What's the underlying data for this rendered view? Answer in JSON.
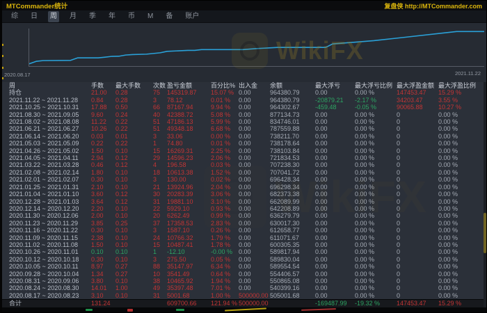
{
  "window": {
    "title": "MTCommander统计",
    "brand": "复盘侠 http://MTCommander.com"
  },
  "colors": {
    "red": "#c43535",
    "green": "#2da563",
    "text": "#b9bfc9",
    "dim": "#a6acb6",
    "accent": "#dcb60c",
    "chart_line": "#2aa1d8",
    "hdr": "#ccd1d9"
  },
  "tabs": {
    "items": [
      "综",
      "日",
      "周",
      "月",
      "季",
      "年",
      "币",
      "M",
      "备",
      "账户"
    ],
    "active_index": 2
  },
  "chart": {
    "start_label": "2020.08.17",
    "end_label": "2021.11.22",
    "watermark": "WikiFX"
  },
  "chart_data": {
    "type": "line",
    "title": "周余额曲线",
    "xlabel": "",
    "ylabel": "余额",
    "legend": [],
    "grid": false,
    "x": [
      "2020.08.17",
      "2020.08.24",
      "2020.08.31",
      "2020.09.28",
      "2020.10.05",
      "2020.10.12",
      "2020.10.26",
      "2020.11.02",
      "2020.11.09",
      "2020.11.16",
      "2020.11.23",
      "2020.11.30",
      "2020.12.14",
      "2020.12.28",
      "2021.01.04",
      "2021.01.25",
      "2021.02.01",
      "2021.02.08",
      "2021.03.22",
      "2021.04.05",
      "2021.04.26",
      "2021.05.03",
      "2021.06.14",
      "2021.06.21",
      "2021.08.02",
      "2021.08.30",
      "2021.10.25",
      "2021.11.22"
    ],
    "series": [
      {
        "name": "余额",
        "values": [
          505001.68,
          540399.16,
          550865.08,
          554406.57,
          589554.54,
          589830.04,
          589817.94,
          600305.35,
          611071.67,
          612658.77,
          630017.3,
          636279.79,
          642208.89,
          662089.99,
          682373.38,
          696298.34,
          696428.34,
          707041.72,
          707238.3,
          721834.53,
          738103.84,
          738178.64,
          738211.7,
          787559.88,
          834746.01,
          877134.73,
          964302.67,
          964380.79
        ]
      }
    ],
    "ylim": [
      500000,
      980000
    ]
  },
  "table": {
    "headers": [
      "周",
      "手数",
      "最大手数",
      "次数",
      "盈亏金额",
      "百分比%",
      "出入金",
      "余额",
      "最大浮亏",
      "最大浮亏比例",
      "最大浮盈金额",
      "最大浮盈比例"
    ],
    "rows": [
      {
        "cells": [
          "持仓",
          "21.00",
          "0.28",
          "75",
          "145319.87",
          "15.07 %",
          "0.00",
          "964380.79",
          "0.00",
          "0.00 %",
          "147453.47",
          "15.29 %"
        ],
        "colors": "wrrrrrddddrr"
      },
      {
        "cells": [
          "2021.11.22 ~ 2021.11.28",
          "0.84",
          "0.28",
          "3",
          "78.12",
          "0.01 %",
          "0.00",
          "964380.79",
          "-20879.21",
          "-2.17 %",
          "34203.47",
          "3.55 %"
        ],
        "colors": "wrrrrrddggrr"
      },
      {
        "cells": [
          "2021.10.25 ~ 2021.10.31",
          "17.88",
          "0.50",
          "66",
          "87167.94",
          "9.94 %",
          "0.00",
          "964302.67",
          "-459.48",
          "-0.05 %",
          "90065.88",
          "10.27 %"
        ],
        "colors": "wrrrrrddggrr"
      },
      {
        "cells": [
          "2021.08.30 ~ 2021.09.05",
          "9.60",
          "0.24",
          "40",
          "42388.72",
          "5.08 %",
          "0.00",
          "877134.73",
          "0.00",
          "0.00 %",
          "0",
          "0.00 %"
        ],
        "colors": "wrrrrrdddddd"
      },
      {
        "cells": [
          "2021.08.02 ~ 2021.08.08",
          "11.22",
          "0.22",
          "51",
          "47186.13",
          "5.99 %",
          "0.00",
          "834746.01",
          "0.00",
          "0.00 %",
          "0",
          "0.00 %"
        ],
        "colors": "wrrrrrdddddd"
      },
      {
        "cells": [
          "2021.06.21 ~ 2021.06.27",
          "10.26",
          "0.22",
          "51",
          "49348.18",
          "6.68 %",
          "0.00",
          "787559.88",
          "0.00",
          "0.00 %",
          "0",
          "0.00 %"
        ],
        "colors": "wrrrrrdddddd"
      },
      {
        "cells": [
          "2021.06.14 ~ 2021.06.20",
          "0.03",
          "0.01",
          "3",
          "33.06",
          "0.00 %",
          "0.00",
          "738211.70",
          "0.00",
          "0.00 %",
          "0",
          "0.00 %"
        ],
        "colors": "wrrrrrdddddd"
      },
      {
        "cells": [
          "2021.05.03 ~ 2021.05.09",
          "0.22",
          "0.22",
          "1",
          "74.80",
          "0.01 %",
          "0.00",
          "738178.64",
          "0.00",
          "0.00 %",
          "0",
          "0.00 %"
        ],
        "colors": "wrrrrrdddddd"
      },
      {
        "cells": [
          "2021.04.26 ~ 2021.05.02",
          "1.50",
          "0.10",
          "15",
          "16269.31",
          "2.25 %",
          "0.00",
          "738103.84",
          "0.00",
          "0.00 %",
          "0",
          "0.00 %"
        ],
        "colors": "wrrrrrdddddd"
      },
      {
        "cells": [
          "2021.04.05 ~ 2021.04.11",
          "2.94",
          "0.12",
          "29",
          "14596.23",
          "2.06 %",
          "0.00",
          "721834.53",
          "0.00",
          "0.00 %",
          "0",
          "0.00 %"
        ],
        "colors": "wrrrrrdddddd"
      },
      {
        "cells": [
          "2021.03.22 ~ 2021.03.28",
          "0.46",
          "0.12",
          "4",
          "196.58",
          "0.03 %",
          "0.00",
          "707238.30",
          "0.00",
          "0.00 %",
          "0",
          "0.00 %"
        ],
        "colors": "wrrrrrdddddd"
      },
      {
        "cells": [
          "2021.02.08 ~ 2021.02.14",
          "1.80",
          "0.10",
          "18",
          "10613.38",
          "1.52 %",
          "0.00",
          "707041.72",
          "0.00",
          "0.00 %",
          "0",
          "0.00 %"
        ],
        "colors": "wrrrrrdddddd"
      },
      {
        "cells": [
          "2021.02.01 ~ 2021.02.07",
          "0.30",
          "0.10",
          "3",
          "130.00",
          "0.02 %",
          "0.00",
          "696428.34",
          "0.00",
          "0.00 %",
          "0",
          "0.00 %"
        ],
        "colors": "wrrrrrdddddd"
      },
      {
        "cells": [
          "2021.01.25 ~ 2021.01.31",
          "2.10",
          "0.10",
          "21",
          "13924.96",
          "2.04 %",
          "0.00",
          "696298.34",
          "0.00",
          "0.00 %",
          "0",
          "0.00 %"
        ],
        "colors": "wrrrrrdddddd"
      },
      {
        "cells": [
          "2021.01.04 ~ 2021.01.10",
          "3.60",
          "0.12",
          "30",
          "20283.39",
          "3.06 %",
          "0.00",
          "682373.38",
          "0.00",
          "0.00 %",
          "0",
          "0.00 %"
        ],
        "colors": "wrrrrrdddddd"
      },
      {
        "cells": [
          "2020.12.28 ~ 2021.01.03",
          "3.64",
          "0.12",
          "31",
          "19881.10",
          "3.10 %",
          "0.00",
          "662089.99",
          "0.00",
          "0.00 %",
          "0",
          "0.00 %"
        ],
        "colors": "wrrrrrdddddd"
      },
      {
        "cells": [
          "2020.12.14 ~ 2020.12.20",
          "2.20",
          "0.10",
          "22",
          "5929.10",
          "0.93 %",
          "0.00",
          "642208.89",
          "0.00",
          "0.00 %",
          "0",
          "0.00 %"
        ],
        "colors": "wrrrrrdddddd"
      },
      {
        "cells": [
          "2020.11.30 ~ 2020.12.06",
          "2.00",
          "0.10",
          "20",
          "6262.49",
          "0.99 %",
          "0.00",
          "636279.79",
          "0.00",
          "0.00 %",
          "0",
          "0.00 %"
        ],
        "colors": "wrrrrrdddddd"
      },
      {
        "cells": [
          "2020.11.23 ~ 2020.11.29",
          "3.85",
          "0.25",
          "37",
          "17358.53",
          "2.83 %",
          "0.00",
          "630017.30",
          "0.00",
          "0.00 %",
          "0",
          "0.00 %"
        ],
        "colors": "wrrrrrdddddd"
      },
      {
        "cells": [
          "2020.11.16 ~ 2020.11.22",
          "0.30",
          "0.10",
          "3",
          "1587.10",
          "0.26 %",
          "0.00",
          "612658.77",
          "0.00",
          "0.00 %",
          "0",
          "0.00 %"
        ],
        "colors": "wrrrrrdddddd"
      },
      {
        "cells": [
          "2020.11.09 ~ 2020.11.15",
          "2.38",
          "0.10",
          "24",
          "10766.32",
          "1.79 %",
          "0.00",
          "611071.67",
          "0.00",
          "0.00 %",
          "0",
          "0.00 %"
        ],
        "colors": "wrrrrrdddddd"
      },
      {
        "cells": [
          "2020.11.02 ~ 2020.11.08",
          "1.50",
          "0.10",
          "15",
          "10487.41",
          "1.78 %",
          "0.00",
          "600305.35",
          "0.00",
          "0.00 %",
          "0",
          "0.00 %"
        ],
        "colors": "wrrrrrdddddd"
      },
      {
        "cells": [
          "2020.10.26 ~ 2020.11.01",
          "0.10",
          "0.10",
          "1",
          "-12.10",
          "-0.00 %",
          "0.00",
          "589817.94",
          "0.00",
          "0.00 %",
          "0",
          "0.00 %"
        ],
        "colors": "wgggggdddddd"
      },
      {
        "cells": [
          "2020.10.12 ~ 2020.10.18",
          "0.30",
          "0.10",
          "3",
          "275.50",
          "0.05 %",
          "0.00",
          "589830.04",
          "0.00",
          "0.00 %",
          "0",
          "0.00 %"
        ],
        "colors": "wrrrrrdddddd"
      },
      {
        "cells": [
          "2020.10.05 ~ 2020.10.11",
          "8.97",
          "0.27",
          "88",
          "35147.97",
          "6.34 %",
          "0.00",
          "589554.54",
          "0.00",
          "0.00 %",
          "0",
          "0.00 %"
        ],
        "colors": "wrrrrrdddddd"
      },
      {
        "cells": [
          "2020.09.28 ~ 2020.10.04",
          "1.34",
          "0.27",
          "10",
          "3541.49",
          "0.64 %",
          "0.00",
          "554406.57",
          "0.00",
          "0.00 %",
          "0",
          "0.00 %"
        ],
        "colors": "wrrrrrdddddd"
      },
      {
        "cells": [
          "2020.08.31 ~ 2020.09.06",
          "3.80",
          "0.10",
          "38",
          "10465.92",
          "1.94 %",
          "0.00",
          "550865.08",
          "0.00",
          "0.00 %",
          "0",
          "0.00 %"
        ],
        "colors": "wrrrrrdddddd"
      },
      {
        "cells": [
          "2020.08.24 ~ 2020.08.30",
          "14.01",
          "1.00",
          "49",
          "35397.48",
          "7.01 %",
          "0.00",
          "540399.16",
          "0.00",
          "0.00 %",
          "0",
          "0.00 %"
        ],
        "colors": "wrrrrrdddddd"
      },
      {
        "cells": [
          "2020.08.17 ~ 2020.08.23",
          "3.10",
          "0.10",
          "31",
          "5001.68",
          "1.00 %",
          "500000.00",
          "505001.68",
          "0.00",
          "0.00 %",
          "0",
          "0.00 %"
        ],
        "colors": "wrrrrrrddddd"
      },
      {
        "cells": [
          "合计",
          "131.24",
          "",
          "",
          "609700.66",
          "121.94 %",
          "500000.00",
          "",
          "-169487.99",
          "-19.32 %",
          "147453.47",
          "15.29 %"
        ],
        "colors": "wrwwrrrwggrr",
        "total": true
      }
    ]
  }
}
